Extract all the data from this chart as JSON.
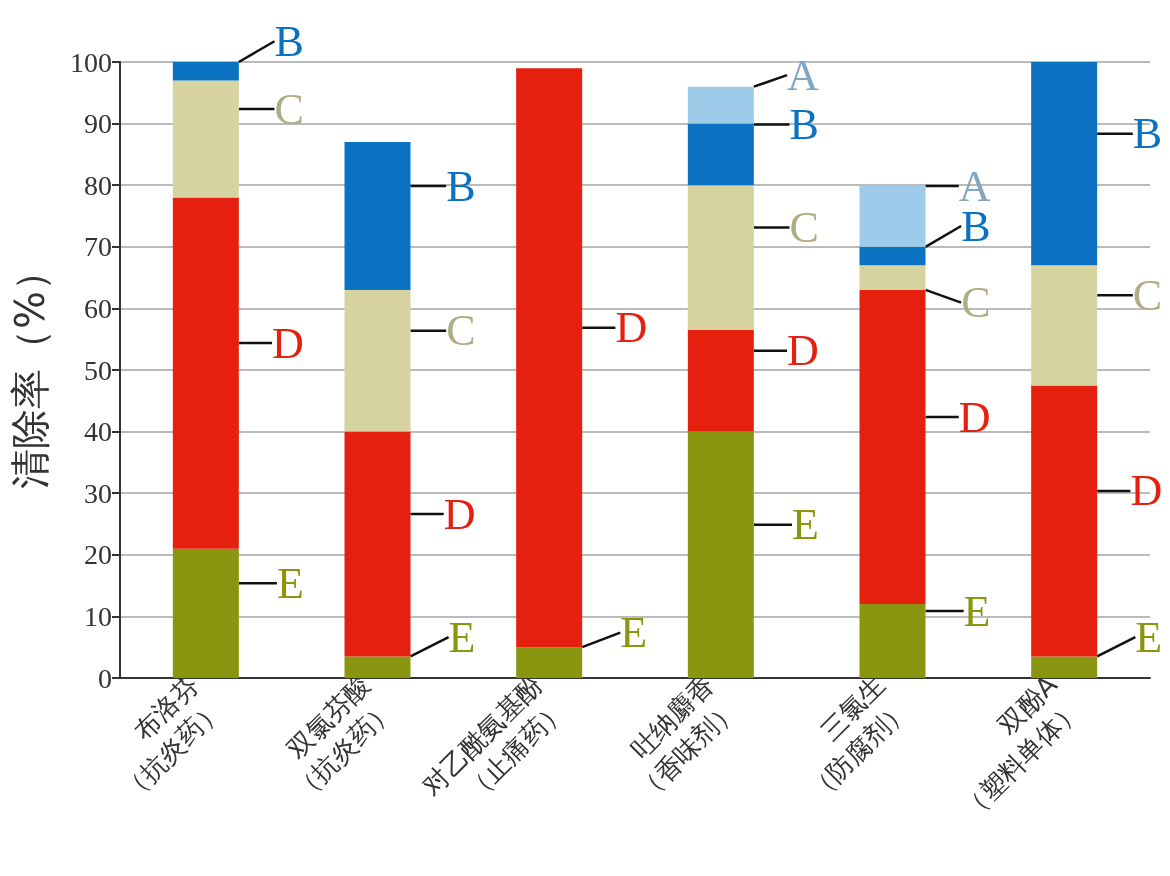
{
  "chart_data": {
    "type": "bar",
    "stacked": true,
    "categories": [
      "布洛芬\n（抗炎药）",
      "双氯芬酸\n（抗炎药）",
      "对乙酰氨基酚\n（止痛药）",
      "吐纳麝香\n（香味剂）",
      "三氯生\n（防腐剂）",
      "双酚A\n（塑料单体）"
    ],
    "ylabel": "清除率（%）",
    "series": [
      {
        "name": "E",
        "color": "#8a9610",
        "values": [
          21,
          3.5,
          5,
          40,
          12,
          3.5
        ]
      },
      {
        "name": "D",
        "color": "#e5200f",
        "values": [
          57,
          36.5,
          94,
          16.5,
          51,
          44
        ]
      },
      {
        "name": "C",
        "color": "#d6d3a0",
        "values": [
          19,
          23,
          null,
          23.5,
          4,
          19.5
        ]
      },
      {
        "name": "B",
        "color": "#0a72c0",
        "values": [
          3,
          24,
          null,
          10,
          3,
          33
        ]
      },
      {
        "name": "A",
        "color": "#9fcbea",
        "values": [
          null,
          null,
          null,
          6,
          10,
          null
        ]
      }
    ],
    "ylim": [
      0,
      100
    ],
    "yticks": [
      0,
      10,
      20,
      30,
      40,
      50,
      60,
      70,
      80,
      90,
      100
    ],
    "grid": "y"
  }
}
